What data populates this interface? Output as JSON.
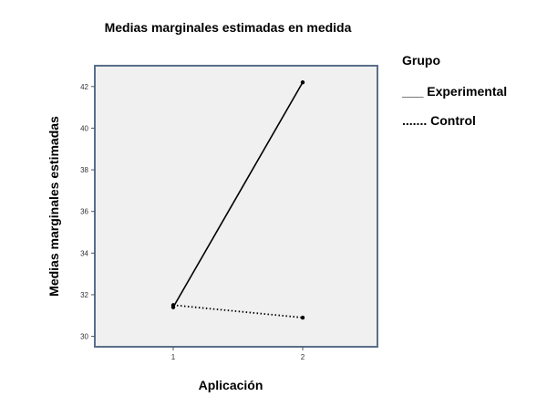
{
  "chart_data": {
    "type": "line",
    "title": "Medias marginales estimadas en medida",
    "xlabel": "Aplicación",
    "ylabel": "Medias marginales estimadas",
    "categories": [
      "1",
      "2"
    ],
    "ylim": [
      29.5,
      43
    ],
    "yticks": [
      30,
      32,
      34,
      36,
      38,
      40,
      42
    ],
    "legend_title": "Grupo",
    "legend_position": "right",
    "grid": false,
    "series": [
      {
        "name": "Experimental",
        "legend_text": "___ Experimental",
        "style": "solid",
        "color": "#000000",
        "values": [
          31.4,
          42.2
        ]
      },
      {
        "name": "Control",
        "legend_text": "....... Control",
        "style": "dotted",
        "color": "#000000",
        "values": [
          31.5,
          30.9
        ]
      }
    ],
    "plot_background": "#f0f0f0",
    "frame_color": "#5a6e8a"
  }
}
